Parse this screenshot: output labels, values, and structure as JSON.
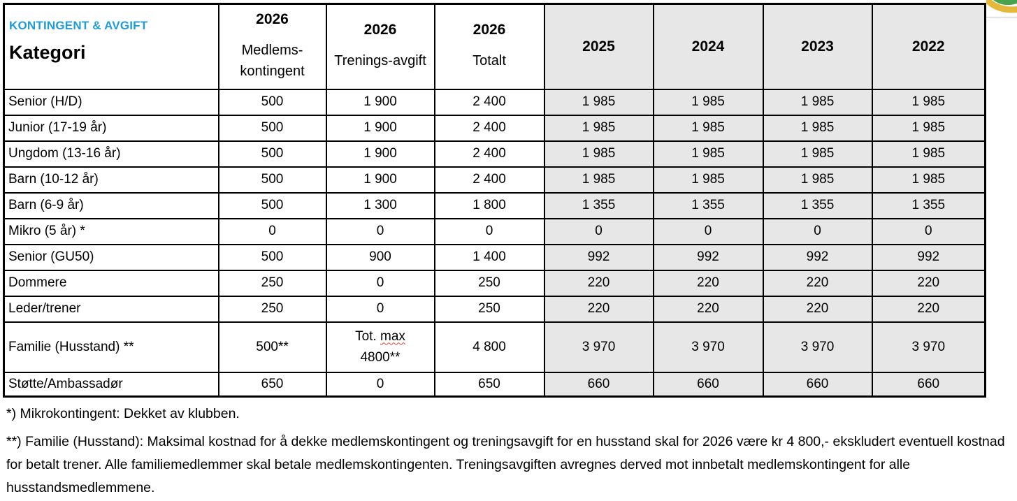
{
  "colors": {
    "accent_blue": "#1F9CD9",
    "shaded_column_bg": "#E8E7E7",
    "table_border": "#000000",
    "spellcheck_red": "#CC4A3F",
    "logo_yellow": "#E3B83B",
    "logo_green": "#47A34D",
    "divider_gray": "#C9C7D2"
  },
  "table": {
    "corner": {
      "eyebrow": "KONTINGENT & AVGIFT",
      "title": "Kategori"
    },
    "columns_2026": [
      {
        "year": "2026",
        "line1": "Medlems-",
        "line2": "kontingent"
      },
      {
        "year": "2026",
        "line1": "Trenings-avgift"
      },
      {
        "year": "2026",
        "line1": "Totalt"
      }
    ],
    "year_columns": [
      "2025",
      "2024",
      "2023",
      "2022"
    ],
    "rows": [
      {
        "label": "Senior (H/D)",
        "values": [
          "500",
          "1 900",
          "2 400",
          "1 985",
          "1 985",
          "1 985",
          "1 985"
        ]
      },
      {
        "label": "Junior (17-19 år)",
        "values": [
          "500",
          "1 900",
          "2 400",
          "1 985",
          "1 985",
          "1 985",
          "1 985"
        ]
      },
      {
        "label": "Ungdom (13-16 år)",
        "values": [
          "500",
          "1 900",
          "2 400",
          "1 985",
          "1 985",
          "1 985",
          "1 985"
        ]
      },
      {
        "label": "Barn (10-12 år)",
        "values": [
          "500",
          "1 900",
          "2 400",
          "1 985",
          "1 985",
          "1 985",
          "1 985"
        ]
      },
      {
        "label": "Barn (6-9 år)",
        "values": [
          "500",
          "1 300",
          "1 800",
          "1 355",
          "1 355",
          "1 355",
          "1 355"
        ]
      },
      {
        "label": "Mikro (5 år) *",
        "values": [
          "0",
          "0",
          "0",
          "0",
          "0",
          "0",
          "0"
        ]
      },
      {
        "label": "Senior (GU50)",
        "values": [
          "500",
          "900",
          "1 400",
          "992",
          "992",
          "992",
          "992"
        ]
      },
      {
        "label": "Dommere",
        "values": [
          "250",
          "0",
          "250",
          "220",
          "220",
          "220",
          "220"
        ]
      },
      {
        "label": "Leder/trener",
        "values": [
          "250",
          "0",
          "250",
          "220",
          "220",
          "220",
          "220"
        ]
      },
      {
        "label": "Familie (Husstand) **",
        "tall": true,
        "values": [
          "500**",
          {
            "line1_prefix": "Tot. ",
            "line1_spellcheck_word": "max",
            "line2": "4800**"
          },
          "4 800",
          "3 970",
          "3 970",
          "3 970",
          "3 970"
        ]
      },
      {
        "label": "Støtte/Ambassadør",
        "last": true,
        "values": [
          "650",
          "0",
          "650",
          "660",
          "660",
          "660",
          "660"
        ]
      }
    ]
  },
  "footnotes": {
    "note_micro": "*) Mikrokontingent: Dekket av klubben.",
    "note_family": "**) Familie (Husstand): Maksimal kostnad for å dekke medlemskontingent og treningsavgift for en husstand skal for 2026 være kr 4 800,- ekskludert eventuell kostnad for betalt trener. Alle familiemedlemmer skal betale medlemskontingenten. Treningsavgiften avregnes derved mot innbetalt medlemskontingent for alle husstandsmedlemmene."
  }
}
